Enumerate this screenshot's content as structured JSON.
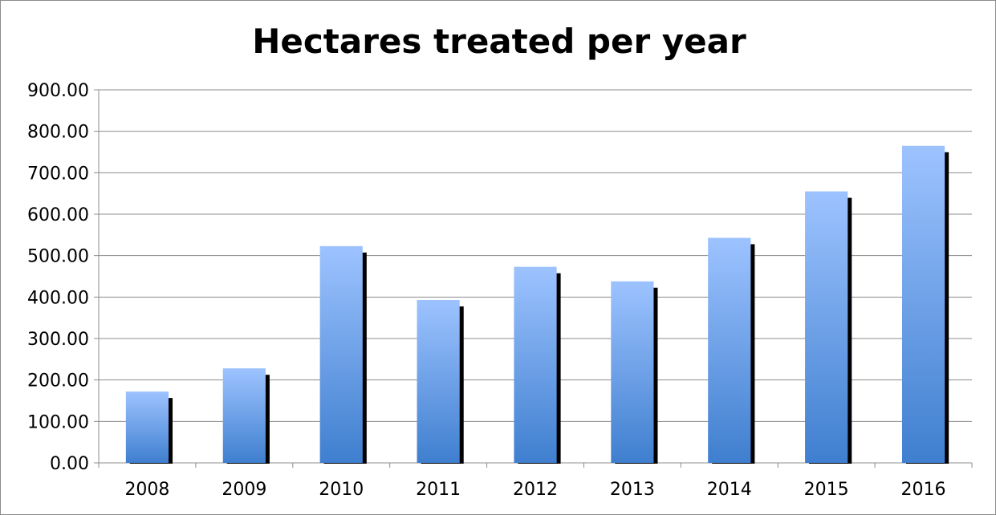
{
  "chart_data": {
    "type": "bar",
    "title": "Hectares treated per year",
    "xlabel": "",
    "ylabel": "",
    "categories": [
      "2008",
      "2009",
      "2010",
      "2011",
      "2012",
      "2013",
      "2014",
      "2015",
      "2016"
    ],
    "values": [
      172,
      228,
      523,
      393,
      473,
      438,
      543,
      655,
      765
    ],
    "ylim": [
      0,
      900
    ],
    "yticks": [
      "0.00",
      "100.00",
      "200.00",
      "300.00",
      "400.00",
      "500.00",
      "600.00",
      "700.00",
      "800.00",
      "900.00"
    ],
    "grid": true,
    "legend": "none",
    "colors": {
      "bar_top": "#9dc3ff",
      "bar_bottom": "#3f7fcf",
      "bar_shadow": "#000000",
      "gridline": "#8c8c8c",
      "axis": "#8c8c8c"
    }
  }
}
